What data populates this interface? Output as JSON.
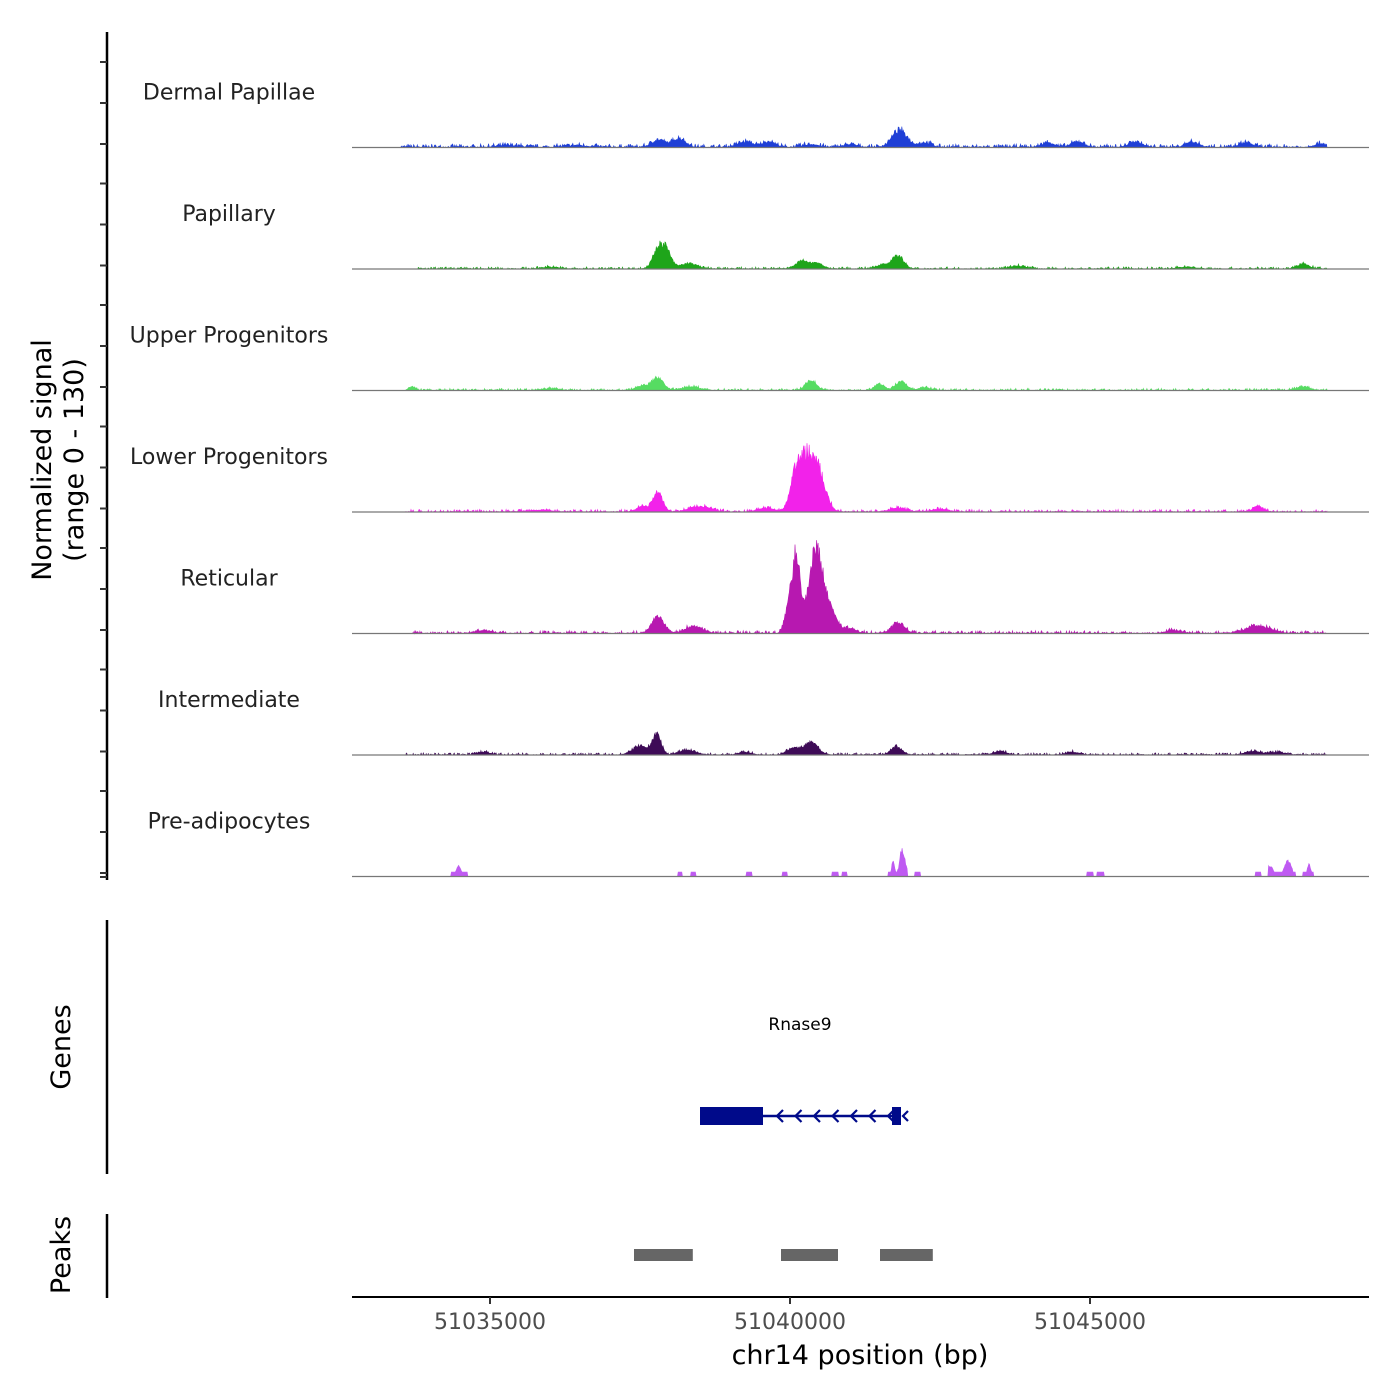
{
  "chart_data": {
    "type": "area",
    "ylabel_line1": "Normalized signal",
    "ylabel_line2": "(range 0 - 130)",
    "y_range": [
      0,
      130
    ],
    "x_range": [
      51032700,
      51049650
    ],
    "xlabel": "chr14 position (bp)",
    "x_ticks": [
      {
        "value": 51035000,
        "label": "51035000"
      },
      {
        "value": 51040000,
        "label": "51040000"
      },
      {
        "value": 51045000,
        "label": "51045000"
      }
    ],
    "series": [
      {
        "name": "Dermal Papillae",
        "color": "#1f3fd6",
        "peaks": [
          [
            51037800,
            8,
            150
          ],
          [
            51038150,
            10,
            150
          ],
          [
            51039250,
            6,
            180
          ],
          [
            51039650,
            6,
            150
          ],
          [
            51040350,
            3,
            180
          ],
          [
            51041000,
            3,
            150
          ],
          [
            51041830,
            18,
            180
          ],
          [
            51042250,
            5,
            150
          ],
          [
            51044300,
            5,
            150
          ],
          [
            51044800,
            6,
            150
          ],
          [
            51045750,
            6,
            150
          ],
          [
            51046700,
            6,
            150
          ],
          [
            51047600,
            5,
            150
          ],
          [
            51048850,
            4,
            150
          ],
          [
            51035300,
            2,
            260
          ],
          [
            51036450,
            2,
            260
          ]
        ],
        "noise": 2.5,
        "start": 51033500,
        "end": 51048950
      },
      {
        "name": "Papillary",
        "color": "#1ea51a",
        "peaks": [
          [
            51037800,
            24,
            120
          ],
          [
            51037950,
            18,
            100
          ],
          [
            51038300,
            6,
            200
          ],
          [
            51040200,
            8,
            160
          ],
          [
            51040450,
            6,
            140
          ],
          [
            51041800,
            14,
            130
          ],
          [
            51041550,
            5,
            150
          ],
          [
            51043800,
            3,
            200
          ],
          [
            51046600,
            2,
            200
          ],
          [
            51048550,
            5,
            150
          ],
          [
            51036000,
            2,
            200
          ]
        ],
        "noise": 1.5,
        "start": 51033800,
        "end": 51048950
      },
      {
        "name": "Upper Progenitors",
        "color": "#56dc62",
        "peaks": [
          [
            51037800,
            14,
            130
          ],
          [
            51037550,
            5,
            150
          ],
          [
            51038350,
            4,
            200
          ],
          [
            51040350,
            11,
            130
          ],
          [
            51041500,
            7,
            110
          ],
          [
            51041850,
            10,
            120
          ],
          [
            51042250,
            3,
            150
          ],
          [
            51048550,
            4,
            150
          ],
          [
            51033700,
            4,
            80
          ],
          [
            51036000,
            2,
            200
          ]
        ],
        "noise": 1.5,
        "start": 51033600,
        "end": 51048950
      },
      {
        "name": "Lower Progenitors",
        "color": "#f222ea",
        "peaks": [
          [
            51040280,
            62,
            200
          ],
          [
            51040080,
            25,
            120
          ],
          [
            51040500,
            28,
            160
          ],
          [
            51037800,
            22,
            110
          ],
          [
            51037550,
            6,
            150
          ],
          [
            51038500,
            6,
            250
          ],
          [
            51039600,
            4,
            200
          ],
          [
            51041800,
            4,
            200
          ],
          [
            51047800,
            6,
            130
          ],
          [
            51042500,
            3,
            200
          ],
          [
            51035800,
            2,
            300
          ]
        ],
        "noise": 1.8,
        "start": 51033600,
        "end": 51048950
      },
      {
        "name": "Reticular",
        "color": "#b718b0",
        "peaks": [
          [
            51040100,
            90,
            100
          ],
          [
            51040420,
            96,
            150
          ],
          [
            51040650,
            30,
            160
          ],
          [
            51039950,
            20,
            80
          ],
          [
            51037800,
            18,
            150
          ],
          [
            51038400,
            8,
            200
          ],
          [
            51041800,
            11,
            150
          ],
          [
            51047800,
            8,
            300
          ],
          [
            51041000,
            5,
            150
          ],
          [
            51034900,
            3,
            200
          ],
          [
            51046400,
            3,
            200
          ]
        ],
        "noise": 2,
        "start": 51033700,
        "end": 51048950
      },
      {
        "name": "Intermediate",
        "color": "#3e0b57",
        "peaks": [
          [
            51037780,
            22,
            100
          ],
          [
            51037500,
            10,
            180
          ],
          [
            51038300,
            5,
            200
          ],
          [
            51040350,
            14,
            160
          ],
          [
            51040050,
            7,
            150
          ],
          [
            51041770,
            9,
            130
          ],
          [
            51043500,
            4,
            150
          ],
          [
            51034900,
            3,
            150
          ],
          [
            51047700,
            4,
            180
          ],
          [
            51048100,
            3,
            200
          ],
          [
            51044700,
            3,
            150
          ],
          [
            51039250,
            3,
            150
          ]
        ],
        "noise": 1.5,
        "start": 51033600,
        "end": 51048950
      },
      {
        "name": "Pre-adipocytes",
        "color": "#bf5af2",
        "peaks": [
          [
            51034480,
            11,
            60
          ],
          [
            51041870,
            30,
            60
          ],
          [
            51041720,
            16,
            40
          ],
          [
            51048300,
            18,
            80
          ],
          [
            51048000,
            12,
            70
          ],
          [
            51048650,
            14,
            40
          ],
          [
            51038300,
            6,
            40
          ],
          [
            51039300,
            5,
            30
          ],
          [
            51041970,
            5,
            40
          ]
        ],
        "noise": 0,
        "segments": [
          [
            51034350,
            51034620
          ],
          [
            51038130,
            51038200
          ],
          [
            51038350,
            51038430
          ],
          [
            51039270,
            51039370
          ],
          [
            51039870,
            51039950
          ],
          [
            51040700,
            51040800
          ],
          [
            51040870,
            51040950
          ],
          [
            51041630,
            51041960
          ],
          [
            51042080,
            51042170
          ],
          [
            51044950,
            51045050
          ],
          [
            51045120,
            51045230
          ],
          [
            51047750,
            51047850
          ],
          [
            51047970,
            51048430
          ],
          [
            51048550,
            51048720
          ]
        ],
        "start": 51033600,
        "end": 51048950
      }
    ],
    "genes": {
      "ylabel": "Genes",
      "name": "Rnase9",
      "color": "#000a8a",
      "start": 51038500,
      "end": 51041850,
      "thick_start": 51038500,
      "thick_end": 51039550,
      "exon2_start": 51041700,
      "exon2_end": 51041850,
      "strand": "-"
    },
    "peaks": {
      "ylabel": "Peaks",
      "color": "#666666",
      "regions": [
        [
          51037400,
          51038380
        ],
        [
          51039850,
          51040800
        ],
        [
          51041500,
          51042380
        ]
      ]
    }
  }
}
